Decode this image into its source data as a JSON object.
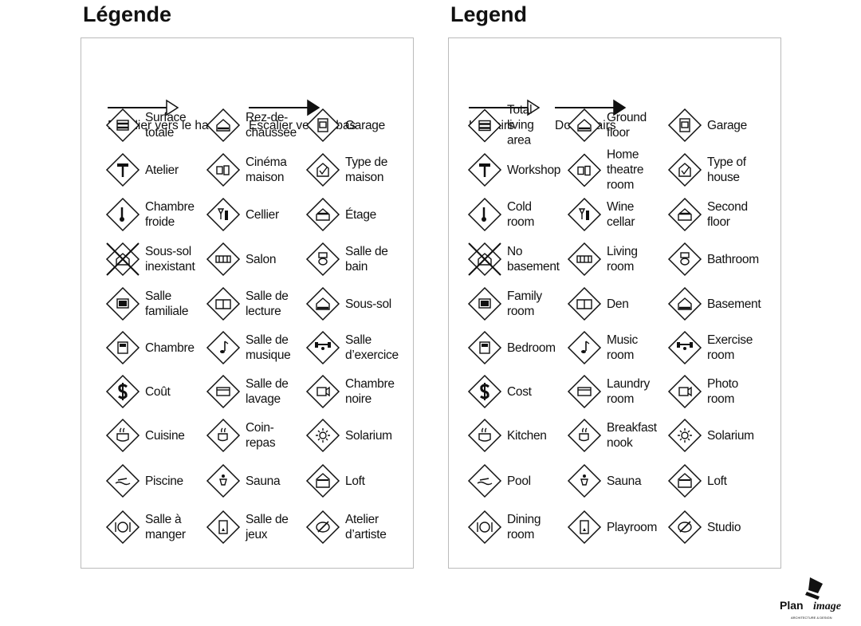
{
  "panels": [
    {
      "title": "Légende",
      "stairs_up": "Escalier vers le haut",
      "stairs_down": "Escalier vers le bas",
      "rows": [
        [
          {
            "icon": "total-area-icon",
            "label": "Surface\ntotale"
          },
          {
            "icon": "ground-floor-icon",
            "label": "Rez-de-\nchaussée"
          },
          {
            "icon": "garage-icon",
            "label": "Garage"
          }
        ],
        [
          {
            "icon": "hammer-icon",
            "label": "Atelier"
          },
          {
            "icon": "home-theatre-icon",
            "label": "Cinéma\nmaison"
          },
          {
            "icon": "house-check-icon",
            "label": "Type de\nmaison"
          }
        ],
        [
          {
            "icon": "thermometer-icon",
            "label": "Chambre\nfroide"
          },
          {
            "icon": "wine-icon",
            "label": "Cellier"
          },
          {
            "icon": "second-floor-icon",
            "label": "Étage"
          }
        ],
        [
          {
            "icon": "no-basement-icon",
            "label": "Sous-sol\ninexistant"
          },
          {
            "icon": "sofa-icon",
            "label": "Salon"
          },
          {
            "icon": "toilet-icon",
            "label": "Salle de\nbain"
          }
        ],
        [
          {
            "icon": "tv-icon",
            "label": "Salle\nfamiliale"
          },
          {
            "icon": "book-icon",
            "label": "Salle de\nlecture"
          },
          {
            "icon": "basement-icon",
            "label": "Sous-sol"
          }
        ],
        [
          {
            "icon": "bed-icon",
            "label": "Chambre"
          },
          {
            "icon": "music-note-icon",
            "label": "Salle de\nmusique"
          },
          {
            "icon": "weights-icon",
            "label": "Salle\nd’exercice"
          }
        ],
        [
          {
            "icon": "dollar-icon",
            "label": "Coût"
          },
          {
            "icon": "washer-icon",
            "label": "Salle de\nlavage"
          },
          {
            "icon": "camera-icon",
            "label": "Chambre\nnoire"
          }
        ],
        [
          {
            "icon": "pot-icon",
            "label": "Cuisine"
          },
          {
            "icon": "coffee-cup-icon",
            "label": "Coin-\nrepas"
          },
          {
            "icon": "sun-icon",
            "label": "Solarium"
          }
        ],
        [
          {
            "icon": "swimmer-icon",
            "label": "Piscine"
          },
          {
            "icon": "sauna-icon",
            "label": "Sauna"
          },
          {
            "icon": "loft-icon",
            "label": "Loft"
          }
        ],
        [
          {
            "icon": "plate-icon",
            "label": "Salle à\nmanger"
          },
          {
            "icon": "playroom-icon",
            "label": "Salle de\njeux"
          },
          {
            "icon": "palette-icon",
            "label": "Atelier\nd’artiste"
          }
        ]
      ]
    },
    {
      "title": "Legend",
      "stairs_up": "Upstairs",
      "stairs_down": "Downstairs",
      "rows": [
        [
          {
            "icon": "total-area-icon",
            "label": "Total\nliving\narea"
          },
          {
            "icon": "ground-floor-icon",
            "label": "Ground\nfloor"
          },
          {
            "icon": "garage-icon",
            "label": "Garage"
          }
        ],
        [
          {
            "icon": "hammer-icon",
            "label": "Workshop"
          },
          {
            "icon": "home-theatre-icon",
            "label": "Home\ntheatre\nroom"
          },
          {
            "icon": "house-check-icon",
            "label": "Type of\nhouse"
          }
        ],
        [
          {
            "icon": "thermometer-icon",
            "label": "Cold\nroom"
          },
          {
            "icon": "wine-icon",
            "label": "Wine\ncellar"
          },
          {
            "icon": "second-floor-icon",
            "label": "Second\nfloor"
          }
        ],
        [
          {
            "icon": "no-basement-icon",
            "label": "No\nbasement"
          },
          {
            "icon": "sofa-icon",
            "label": "Living\nroom"
          },
          {
            "icon": "toilet-icon",
            "label": "Bathroom"
          }
        ],
        [
          {
            "icon": "tv-icon",
            "label": "Family\nroom"
          },
          {
            "icon": "book-icon",
            "label": "Den"
          },
          {
            "icon": "basement-icon",
            "label": "Basement"
          }
        ],
        [
          {
            "icon": "bed-icon",
            "label": "Bedroom"
          },
          {
            "icon": "music-note-icon",
            "label": "Music\nroom"
          },
          {
            "icon": "weights-icon",
            "label": "Exercise\nroom"
          }
        ],
        [
          {
            "icon": "dollar-icon",
            "label": "Cost"
          },
          {
            "icon": "washer-icon",
            "label": "Laundry\nroom"
          },
          {
            "icon": "camera-icon",
            "label": "Photo\nroom"
          }
        ],
        [
          {
            "icon": "pot-icon",
            "label": "Kitchen"
          },
          {
            "icon": "coffee-cup-icon",
            "label": "Breakfast\nnook"
          },
          {
            "icon": "sun-icon",
            "label": "Solarium"
          }
        ],
        [
          {
            "icon": "swimmer-icon",
            "label": "Pool"
          },
          {
            "icon": "sauna-icon",
            "label": "Sauna"
          },
          {
            "icon": "loft-icon",
            "label": "Loft"
          }
        ],
        [
          {
            "icon": "plate-icon",
            "label": "Dining\nroom"
          },
          {
            "icon": "playroom-icon",
            "label": "Playroom"
          },
          {
            "icon": "palette-icon",
            "label": "Studio"
          }
        ]
      ]
    }
  ],
  "logo": {
    "name": "PlanImage",
    "tagline": "ARCHITECTURE & DESIGN"
  }
}
